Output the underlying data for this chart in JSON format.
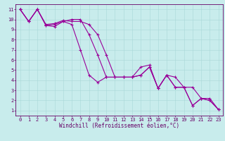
{
  "background_color": "#c8ecec",
  "grid_color": "#a8d8d8",
  "line_color": "#990099",
  "marker": "+",
  "markersize": 3,
  "linewidth": 0.8,
  "xlabel": "Windchill (Refroidissement éolien,°C)",
  "xlabel_fontsize": 5.5,
  "tick_fontsize": 5,
  "xlim": [
    -0.5,
    23.5
  ],
  "ylim": [
    0.5,
    11.5
  ],
  "xticks": [
    0,
    1,
    2,
    3,
    4,
    5,
    6,
    7,
    8,
    9,
    10,
    11,
    12,
    13,
    14,
    15,
    16,
    17,
    18,
    19,
    20,
    21,
    22,
    23
  ],
  "yticks": [
    1,
    2,
    3,
    4,
    5,
    6,
    7,
    8,
    9,
    10,
    11
  ],
  "line1_x": [
    0,
    1,
    2,
    3,
    4,
    5,
    6,
    7,
    8,
    9,
    10,
    11,
    12,
    13,
    14,
    15,
    16,
    17,
    18,
    19,
    20,
    21,
    22,
    23
  ],
  "line1_y": [
    11.0,
    9.8,
    11.0,
    9.4,
    9.5,
    9.8,
    10.0,
    10.0,
    8.5,
    6.5,
    4.3,
    4.3,
    4.3,
    4.3,
    4.5,
    5.3,
    3.2,
    4.5,
    4.3,
    3.3,
    3.3,
    2.2,
    2.2,
    1.1
  ],
  "line2_x": [
    0,
    1,
    2,
    3,
    4,
    5,
    6,
    7,
    8,
    9,
    10,
    11,
    12,
    13,
    14,
    15,
    16,
    17,
    18,
    19,
    20,
    21,
    22,
    23
  ],
  "line2_y": [
    11.0,
    9.8,
    11.0,
    9.5,
    9.6,
    9.9,
    9.8,
    9.8,
    9.5,
    8.5,
    6.5,
    4.3,
    4.3,
    4.3,
    4.5,
    5.3,
    3.2,
    4.5,
    3.3,
    3.3,
    1.5,
    2.2,
    2.0,
    1.1
  ],
  "line3_x": [
    0,
    1,
    2,
    3,
    4,
    5,
    6,
    7,
    8,
    9,
    10,
    11,
    12,
    13,
    14,
    15,
    16,
    17,
    18,
    19,
    20,
    21,
    22,
    23
  ],
  "line3_y": [
    11.0,
    9.8,
    11.0,
    9.4,
    9.3,
    9.8,
    9.5,
    7.0,
    4.5,
    3.8,
    4.3,
    4.3,
    4.3,
    4.3,
    5.3,
    5.5,
    3.2,
    4.5,
    3.3,
    3.3,
    1.5,
    2.2,
    2.0,
    1.1
  ]
}
